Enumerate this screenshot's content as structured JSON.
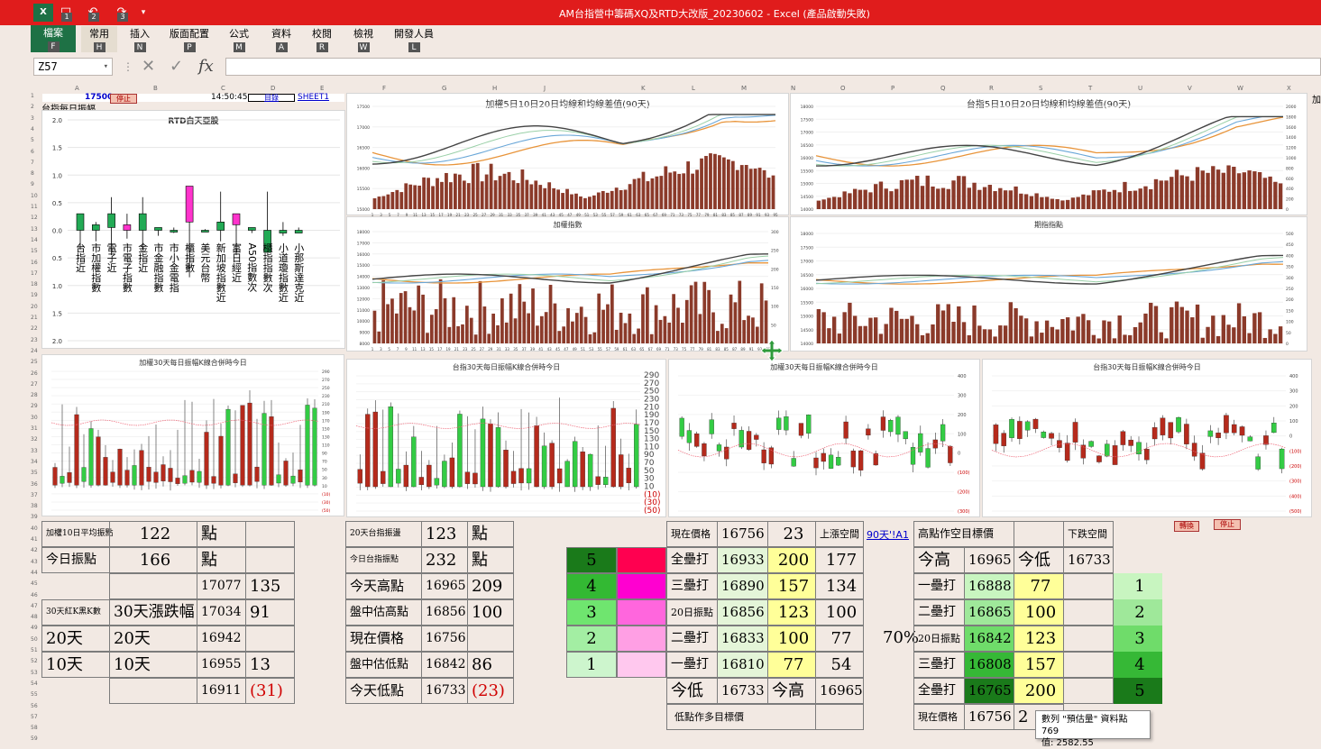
{
  "window": {
    "title": "AM台指營中籌碼XQ及RTD大改版_20230602 - Excel (產品啟動失敗)"
  },
  "quick_access": {
    "keys": [
      "1",
      "2",
      "3"
    ]
  },
  "ribbon": {
    "tabs": [
      {
        "label": "檔案",
        "key": "F"
      },
      {
        "label": "常用",
        "key": "H"
      },
      {
        "label": "插入",
        "key": "N"
      },
      {
        "label": "版面配置",
        "key": "P"
      },
      {
        "label": "公式",
        "key": "M"
      },
      {
        "label": "資料",
        "key": "A"
      },
      {
        "label": "校閱",
        "key": "R"
      },
      {
        "label": "檢視",
        "key": "W"
      },
      {
        "label": "開發人員",
        "key": "L"
      }
    ]
  },
  "formula_bar": {
    "name_box": "Z57",
    "fx": "fx",
    "value": ""
  },
  "columns": [
    "A",
    "B",
    "C",
    "D",
    "E",
    "F",
    "G",
    "H",
    "J",
    "K",
    "L",
    "M",
    "N",
    "O",
    "P",
    "Q",
    "R",
    "S",
    "T",
    "U",
    "V",
    "W",
    "X"
  ],
  "top_row": {
    "value": "17500",
    "btn_stop": "停止",
    "time": "14:50:45",
    "link_list": "目錄",
    "sheet": "SHEET1",
    "overflow": "加"
  },
  "left_panel": {
    "title": "台指每日振幅",
    "chart_title": "RTD白天亞股",
    "y_ticks": [
      "2.0",
      "1.5",
      "1.0",
      "0.5",
      "0.0",
      "0.5",
      "1.0",
      "1.5",
      "2.0"
    ],
    "labels": [
      "台指近",
      "市加權指數",
      "電子近",
      "市電子指數",
      "金指近",
      "市金融指數",
      "市小金電指",
      "櫃指數",
      "美元台幣",
      "新加坡指數近",
      "富日經近",
      "A50指數次",
      "櫃指指數次",
      "小道瓊指數近",
      "小那斯達克近"
    ]
  },
  "charts": {
    "c1": {
      "title": "加權5日10日20日均線和均線差值(90天)"
    },
    "c2": {
      "title": "台指5日10日20日均線和均線差值(90天)"
    },
    "c3": {
      "title": "加權指數"
    },
    "c4": {
      "title": "期指指點"
    },
    "c5": {
      "title": "加權30天每日振幅K線合併時今日"
    },
    "c6": {
      "title": "台指30天每日振幅K線合併時今日"
    },
    "c7": {
      "title": "加權30天每日振幅K線合併時今日"
    },
    "c8": {
      "title": "台指30天每日振幅K線合併時今日"
    }
  },
  "y_axes": {
    "c1": [
      "17500",
      "17000",
      "16500",
      "16000",
      "15500",
      "15000"
    ],
    "c2": [
      "18000",
      "17500",
      "17000",
      "16500",
      "16000",
      "15500",
      "15000",
      "14500",
      "14000"
    ],
    "c2r": [
      "2000",
      "1800",
      "1600",
      "1400",
      "1200",
      "1000",
      "800",
      "600",
      "400",
      "200",
      "0"
    ],
    "c3": [
      "18000",
      "17000",
      "16000",
      "15000",
      "14000",
      "13000",
      "12000",
      "11000",
      "10000",
      "9000",
      "8000"
    ],
    "c3r": [
      "300",
      "250",
      "200",
      "150",
      "100",
      "50",
      "0"
    ],
    "c4": [
      "18000",
      "17500",
      "17000",
      "16500",
      "16000",
      "15500",
      "15000",
      "14500",
      "14000"
    ],
    "c4r": [
      "500",
      "450",
      "400",
      "350",
      "300",
      "250",
      "200",
      "150",
      "100",
      "50",
      "0"
    ],
    "c5": [
      "290",
      "270",
      "250",
      "230",
      "210",
      "190",
      "170",
      "150",
      "130",
      "110",
      "90",
      "70",
      "50",
      "30",
      "10",
      "(10)",
      "(30)",
      "(50)"
    ],
    "c6": [
      "290",
      "270",
      "250",
      "230",
      "210",
      "190",
      "170",
      "150",
      "130",
      "110",
      "90",
      "70",
      "50",
      "30",
      "10",
      "(10)",
      "(30)",
      "(50)"
    ],
    "c7": [
      "400",
      "300",
      "200",
      "100",
      "0",
      "(100)",
      "(200)",
      "(300)"
    ],
    "c8": [
      "400",
      "300",
      "200",
      "100",
      "0",
      "(100)",
      "(200)",
      "(300)",
      "(400)",
      "(500)"
    ]
  },
  "x_axes": {
    "days90": [
      "1",
      "3",
      "5",
      "7",
      "9",
      "11",
      "13",
      "15",
      "17",
      "19",
      "21",
      "23",
      "25",
      "27",
      "29",
      "31",
      "33",
      "35",
      "37",
      "39",
      "41",
      "43",
      "45",
      "47",
      "49",
      "51",
      "53",
      "55",
      "57",
      "59",
      "61",
      "63",
      "65",
      "67",
      "69",
      "71",
      "73",
      "75",
      "77",
      "79",
      "81",
      "83",
      "85",
      "87",
      "89",
      "91",
      "93",
      "95"
    ]
  },
  "table_left": {
    "r1": {
      "label": "加權10日平均振點",
      "value": "122",
      "unit": "點"
    },
    "r2": {
      "label": "今日振點",
      "value": "166",
      "unit": "點"
    },
    "r3": {
      "c3": "17077",
      "c4": "135"
    },
    "r4": {
      "c1": "30天紅K黑K數",
      "c2": "30天漲跌幅",
      "c3": "17034",
      "c4": "91"
    },
    "r5": {
      "c1": "20天",
      "c2": "20天",
      "c3": "16942",
      "c4": ""
    },
    "r6": {
      "c1": "10天",
      "c2": "10天",
      "c3": "16955",
      "c4": "13"
    },
    "r7": {
      "c3": "16911",
      "c4": "(31)"
    }
  },
  "table_mid": {
    "r1": {
      "label": "20天台指振盪",
      "value": "123",
      "unit": "點"
    },
    "r2": {
      "label": "今日台指振點",
      "value": "232",
      "unit": "點"
    },
    "r3": {
      "label": "今天高點",
      "value": "16965",
      "diff": "209"
    },
    "r4": {
      "label": "盤中估高點",
      "value": "16856",
      "diff": "100"
    },
    "r5": {
      "label": "現在價格",
      "value": "16756",
      "diff": ""
    },
    "r6": {
      "label": "盤中估低點",
      "value": "16842",
      "diff": "86"
    },
    "r7": {
      "label": "今天低點",
      "value": "16733",
      "diff": "(23)"
    }
  },
  "color_blocks": {
    "levels": [
      "5",
      "4",
      "3",
      "2",
      "1"
    ]
  },
  "table_right1": {
    "header": {
      "label": "現在價格",
      "value": "16756",
      "diff": "23",
      "up_label": "上漲空間",
      "link": "90天'!A1"
    },
    "rows": [
      {
        "label": "全壘打",
        "value": "16933",
        "a": "200",
        "b": "177"
      },
      {
        "label": "三壘打",
        "value": "16890",
        "a": "157",
        "b": "134"
      },
      {
        "label": "20日振點",
        "value": "16856",
        "a": "123",
        "b": "100"
      },
      {
        "label": "二壘打",
        "value": "16833",
        "a": "100",
        "b": "77"
      },
      {
        "label": "一壘打",
        "value": "16810",
        "a": "77",
        "b": "54"
      }
    ],
    "low": {
      "label": "今低",
      "value": "16733",
      "hi_label": "今高",
      "hi_value": "16965"
    },
    "footer": "低點作多目標價",
    "pct": "70%"
  },
  "table_right2": {
    "header": {
      "label": "高點作空目標價",
      "down_label": "下跌空間"
    },
    "sub": {
      "hi_label": "今高",
      "hi_value": "16965",
      "lo_label": "今低",
      "lo_value": "16733"
    },
    "rows": [
      {
        "label": "一壘打",
        "value": "16888",
        "a": "77",
        "n": "1"
      },
      {
        "label": "二壘打",
        "value": "16865",
        "a": "100",
        "n": "2"
      },
      {
        "label": "20日振點",
        "value": "16842",
        "a": "123",
        "n": "3"
      },
      {
        "label": "三壘打",
        "value": "16808",
        "a": "157",
        "n": "4"
      },
      {
        "label": "全壘打",
        "value": "16765",
        "a": "200",
        "n": "5"
      }
    ],
    "footer": {
      "label": "現在價格",
      "value": "16756",
      "a": "2"
    }
  },
  "small_buttons": {
    "b1": "轉換",
    "b2": "停止"
  },
  "tooltip": {
    "line1": "數列 \"預估量\" 資料點 769",
    "line2": "值: 2582.55"
  },
  "colors": {
    "title_red": "#e01c1c",
    "excel_green": "#1e7145",
    "bar": "#8b3a2a",
    "ma5": "#e8943a",
    "ma10": "#6aa7d8",
    "ma20": "#444444",
    "ma_extra": "#9ad"
  }
}
